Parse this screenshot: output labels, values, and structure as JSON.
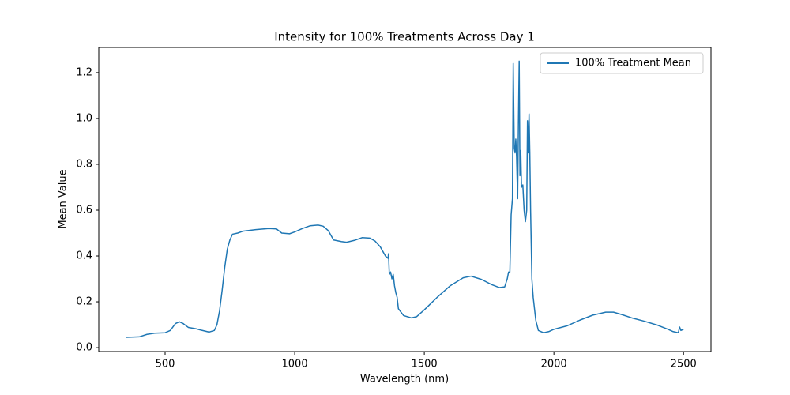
{
  "chart_data": {
    "type": "line",
    "title": "Intensity for 100% Treatments Across Day 1",
    "x_label": "Wavelength (nm)",
    "y_label": "Mean Value",
    "xlim": [
      244,
      2606
    ],
    "ylim": [
      -0.017,
      1.31
    ],
    "xticks": [
      500,
      1000,
      1500,
      2000,
      2500
    ],
    "yticks": [
      {
        "value": 0,
        "label": "0.0"
      },
      {
        "value": 0.2,
        "label": "0.2"
      },
      {
        "value": 0.4,
        "label": "0.4"
      },
      {
        "value": 0.6,
        "label": "0.6"
      },
      {
        "value": 0.8,
        "label": "0.8"
      },
      {
        "value": 1,
        "label": "1.0"
      },
      {
        "value": 1.2,
        "label": "1.2"
      }
    ],
    "legend": "upper right",
    "grid": false,
    "x": [
      350,
      400,
      430,
      460,
      500,
      520,
      540,
      555,
      570,
      590,
      620,
      640,
      670,
      690,
      700,
      710,
      720,
      730,
      740,
      750,
      760,
      780,
      800,
      850,
      900,
      930,
      950,
      980,
      1000,
      1030,
      1060,
      1090,
      1110,
      1130,
      1150,
      1180,
      1200,
      1230,
      1260,
      1290,
      1310,
      1330,
      1350,
      1360,
      1362,
      1365,
      1370,
      1375,
      1380,
      1385,
      1390,
      1395,
      1400,
      1420,
      1450,
      1470,
      1500,
      1550,
      1600,
      1650,
      1680,
      1720,
      1760,
      1790,
      1810,
      1820,
      1825,
      1830,
      1835,
      1840,
      1843,
      1847,
      1850,
      1853,
      1856,
      1860,
      1863,
      1866,
      1869,
      1872,
      1875,
      1880,
      1885,
      1890,
      1895,
      1898,
      1901,
      1904,
      1907,
      1910,
      1915,
      1920,
      1930,
      1940,
      1960,
      1980,
      2000,
      2050,
      2100,
      2150,
      2200,
      2230,
      2260,
      2300,
      2350,
      2400,
      2440,
      2460,
      2480,
      2485,
      2490,
      2500
    ],
    "series": [
      {
        "name": "100% Treatment Mean",
        "color": "#1f77b4",
        "values": [
          0.045,
          0.047,
          0.058,
          0.063,
          0.065,
          0.075,
          0.105,
          0.113,
          0.105,
          0.088,
          0.082,
          0.076,
          0.068,
          0.075,
          0.1,
          0.16,
          0.25,
          0.35,
          0.43,
          0.47,
          0.495,
          0.5,
          0.508,
          0.515,
          0.52,
          0.518,
          0.5,
          0.497,
          0.505,
          0.52,
          0.532,
          0.535,
          0.53,
          0.51,
          0.47,
          0.463,
          0.46,
          0.468,
          0.48,
          0.478,
          0.465,
          0.44,
          0.4,
          0.39,
          0.41,
          0.32,
          0.33,
          0.3,
          0.32,
          0.27,
          0.24,
          0.22,
          0.17,
          0.14,
          0.13,
          0.135,
          0.165,
          0.22,
          0.27,
          0.305,
          0.312,
          0.298,
          0.275,
          0.262,
          0.265,
          0.3,
          0.33,
          0.33,
          0.58,
          0.65,
          1.24,
          0.87,
          0.85,
          0.91,
          0.83,
          0.65,
          0.98,
          1.25,
          0.75,
          0.86,
          0.7,
          0.71,
          0.6,
          0.55,
          0.6,
          0.99,
          0.85,
          1.02,
          0.85,
          0.6,
          0.3,
          0.22,
          0.12,
          0.075,
          0.065,
          0.07,
          0.08,
          0.095,
          0.12,
          0.142,
          0.155,
          0.155,
          0.145,
          0.13,
          0.115,
          0.098,
          0.08,
          0.07,
          0.065,
          0.09,
          0.075,
          0.08
        ]
      }
    ]
  }
}
